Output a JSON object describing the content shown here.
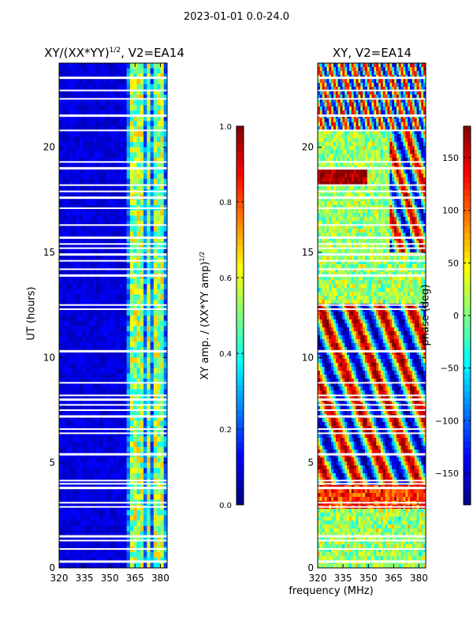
{
  "suptitle": "2023-01-01 0.0-24.0",
  "chart_data": [
    {
      "type": "heatmap",
      "title_main": "XY/(XX*YY)",
      "title_sup": "1/2",
      "title_tail": ", V2=EA14",
      "xlabel": "",
      "ylabel": "UT (hours)",
      "xlim": [
        320,
        384
      ],
      "ylim": [
        0,
        24
      ],
      "xticks": [
        "320",
        "335",
        "350",
        "365",
        "380"
      ],
      "xtick_values": [
        320,
        335,
        350,
        365,
        380
      ],
      "yticks": [
        "0",
        "5",
        "10",
        "15",
        "20"
      ],
      "ytick_values": [
        0,
        5,
        10,
        15,
        20
      ],
      "colorbar": {
        "label_main": "XY amp. / (XX*YY amp)",
        "label_sup": "1/2",
        "range": [
          0.0,
          1.0
        ],
        "ticks": [
          "0.0",
          "0.2",
          "0.4",
          "0.6",
          "0.8",
          "1.0"
        ],
        "tick_values": [
          0.0,
          0.2,
          0.4,
          0.6,
          0.8,
          1.0
        ]
      },
      "description_value": "low amplitude (~0.05) below 361 MHz; higher amplitude (~0.3-0.7) channels above 361 MHz"
    },
    {
      "type": "heatmap",
      "title": "XY, V2=EA14",
      "xlabel": "frequency (MHz)",
      "ylabel": "",
      "xlim": [
        320,
        384
      ],
      "ylim": [
        0,
        24
      ],
      "xticks": [
        "320",
        "335",
        "350",
        "365",
        "380"
      ],
      "xtick_values": [
        320,
        335,
        350,
        365,
        380
      ],
      "yticks": [
        "0",
        "5",
        "10",
        "15",
        "20"
      ],
      "ytick_values": [
        0,
        5,
        10,
        15,
        20
      ],
      "colorbar": {
        "label": "phase (deg)",
        "range": [
          -180,
          180
        ],
        "ticks": [
          "−150",
          "−100",
          "−50",
          "0",
          "50",
          "100",
          "150"
        ],
        "tick_values": [
          -150,
          -100,
          -50,
          0,
          50,
          100,
          150
        ]
      },
      "flagged_hours": [
        0.3,
        0.9,
        1.3,
        1.5,
        2.9,
        3.1,
        3.8,
        4.0,
        4.15,
        5.4,
        6.4,
        6.6,
        7.2,
        7.5,
        7.75,
        8.0,
        8.2,
        8.8,
        10.3,
        12.3,
        12.5,
        13.9,
        14.2,
        14.6,
        14.9,
        15.2,
        15.4,
        15.7,
        16.3,
        17.1,
        17.6,
        17.9,
        18.2,
        19.0,
        19.3,
        20.8,
        21.5,
        22.3,
        22.7,
        23.3
      ]
    }
  ]
}
